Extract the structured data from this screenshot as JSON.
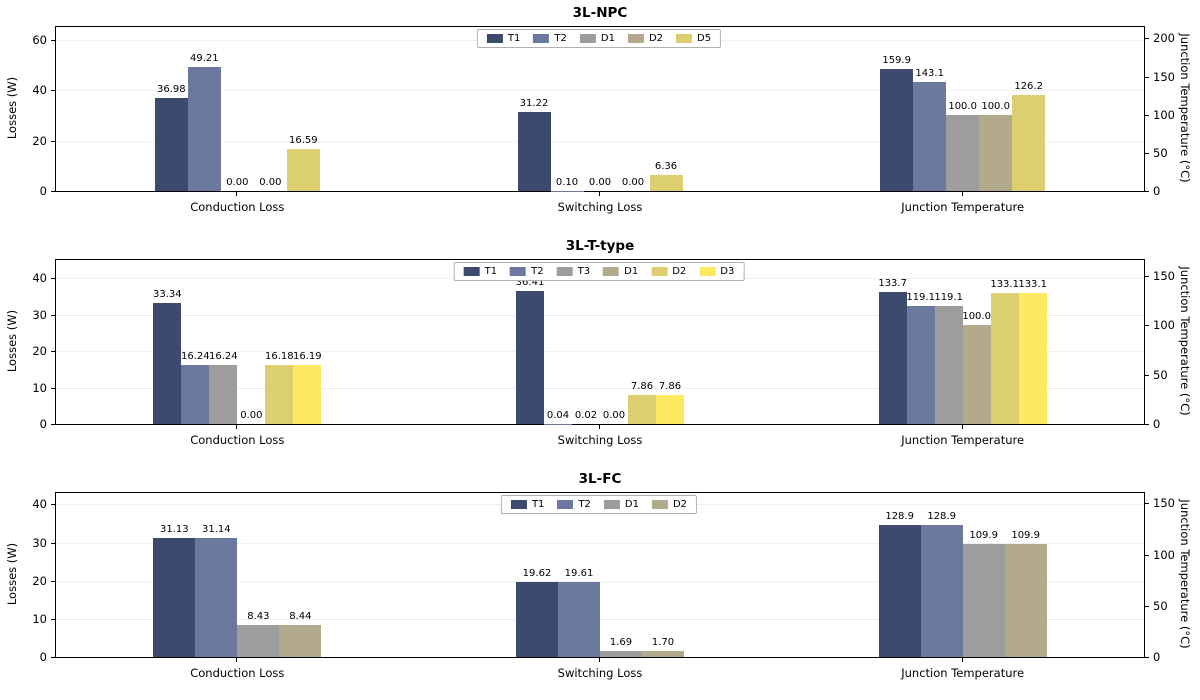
{
  "figure": {
    "background": "#ffffff"
  },
  "chart_data": [
    {
      "title": "3L-NPC",
      "type": "bar",
      "ylabel_left": "Losses (W)",
      "ylabel_right": "Junction Temperature (°C)",
      "left_ticks": [
        0,
        20,
        40,
        60
      ],
      "left_max": 65,
      "right_ticks": [
        0,
        50,
        100,
        150,
        200
      ],
      "right_max": 215,
      "legend_position": "top-center",
      "grid": true,
      "series": [
        {
          "name": "T1",
          "color": "#3b4a6d"
        },
        {
          "name": "T2",
          "color": "#6b79a1"
        },
        {
          "name": "D1",
          "color": "#9d9d9d"
        },
        {
          "name": "D2",
          "color": "#b3aa8e"
        },
        {
          "name": "D5",
          "color": "#dccf70"
        }
      ],
      "groups": [
        {
          "label": "Conduction Loss",
          "axis": "left",
          "values": [
            36.98,
            49.21,
            0,
            0,
            16.59
          ],
          "value_labels": [
            "36.98",
            "49.21",
            "0.00",
            "0.00",
            "16.59"
          ]
        },
        {
          "label": "Switching Loss",
          "axis": "left",
          "values": [
            31.22,
            0.1,
            0,
            0,
            6.36
          ],
          "value_labels": [
            "31.22",
            "0.10",
            "0.00",
            "0.00",
            "6.36"
          ]
        },
        {
          "label": "Junction Temperature",
          "axis": "right",
          "values": [
            159.9,
            143.1,
            100.0,
            100.0,
            126.2
          ],
          "value_labels": [
            "159.9",
            "143.1",
            "100.0",
            "100.0",
            "126.2"
          ]
        }
      ]
    },
    {
      "title": "3L-T-type",
      "type": "bar",
      "ylabel_left": "Losses (W)",
      "ylabel_right": "Junction Temperature (°C)",
      "left_ticks": [
        0,
        10,
        20,
        30,
        40
      ],
      "left_max": 45,
      "right_ticks": [
        0,
        50,
        100,
        150
      ],
      "right_max": 166,
      "legend_position": "top-center",
      "grid": true,
      "series": [
        {
          "name": "T1",
          "color": "#3b4a6d"
        },
        {
          "name": "T2",
          "color": "#6b79a1"
        },
        {
          "name": "T3",
          "color": "#9d9d9d"
        },
        {
          "name": "D1",
          "color": "#b3aa8e"
        },
        {
          "name": "D2",
          "color": "#dccf70"
        },
        {
          "name": "D3",
          "color": "#fce95f"
        }
      ],
      "groups": [
        {
          "label": "Conduction Loss",
          "axis": "left",
          "values": [
            33.34,
            16.24,
            16.24,
            0,
            16.18,
            16.19
          ],
          "value_labels": [
            "33.34",
            "16.24",
            "16.24",
            "0.00",
            "16.18",
            "16.19"
          ]
        },
        {
          "label": "Switching Loss",
          "axis": "left",
          "values": [
            36.41,
            0.04,
            0.02,
            0,
            7.86,
            7.86
          ],
          "value_labels": [
            "36.41",
            "0.04",
            "0.02",
            "0.00",
            "7.86",
            "7.86"
          ]
        },
        {
          "label": "Junction Temperature",
          "axis": "right",
          "values": [
            133.7,
            119.1,
            119.1,
            100.0,
            133.1,
            133.1
          ],
          "value_labels": [
            "133.7",
            "119.1",
            "119.1",
            "100.0",
            "133.1",
            "133.1"
          ]
        }
      ]
    },
    {
      "title": "3L-FC",
      "type": "bar",
      "ylabel_left": "Losses (W)",
      "ylabel_right": "Junction Temperature (°C)",
      "left_ticks": [
        0,
        10,
        20,
        30,
        40
      ],
      "left_max": 43,
      "right_ticks": [
        0,
        50,
        100,
        150
      ],
      "right_max": 160,
      "legend_position": "top-center",
      "grid": true,
      "series": [
        {
          "name": "T1",
          "color": "#3b4a6d"
        },
        {
          "name": "T2",
          "color": "#6b79a1"
        },
        {
          "name": "D1",
          "color": "#9d9d9d"
        },
        {
          "name": "D2",
          "color": "#b3aa8e"
        }
      ],
      "groups": [
        {
          "label": "Conduction Loss",
          "axis": "left",
          "values": [
            31.13,
            31.14,
            8.43,
            8.44
          ],
          "value_labels": [
            "31.13",
            "31.14",
            "8.43",
            "8.44"
          ]
        },
        {
          "label": "Switching Loss",
          "axis": "left",
          "values": [
            19.62,
            19.61,
            1.69,
            1.7
          ],
          "value_labels": [
            "19.62",
            "19.61",
            "1.69",
            "1.70"
          ]
        },
        {
          "label": "Junction Temperature",
          "axis": "right",
          "values": [
            128.9,
            128.9,
            109.9,
            109.9
          ],
          "value_labels": [
            "128.9",
            "128.9",
            "109.9",
            "109.9"
          ]
        }
      ]
    }
  ]
}
